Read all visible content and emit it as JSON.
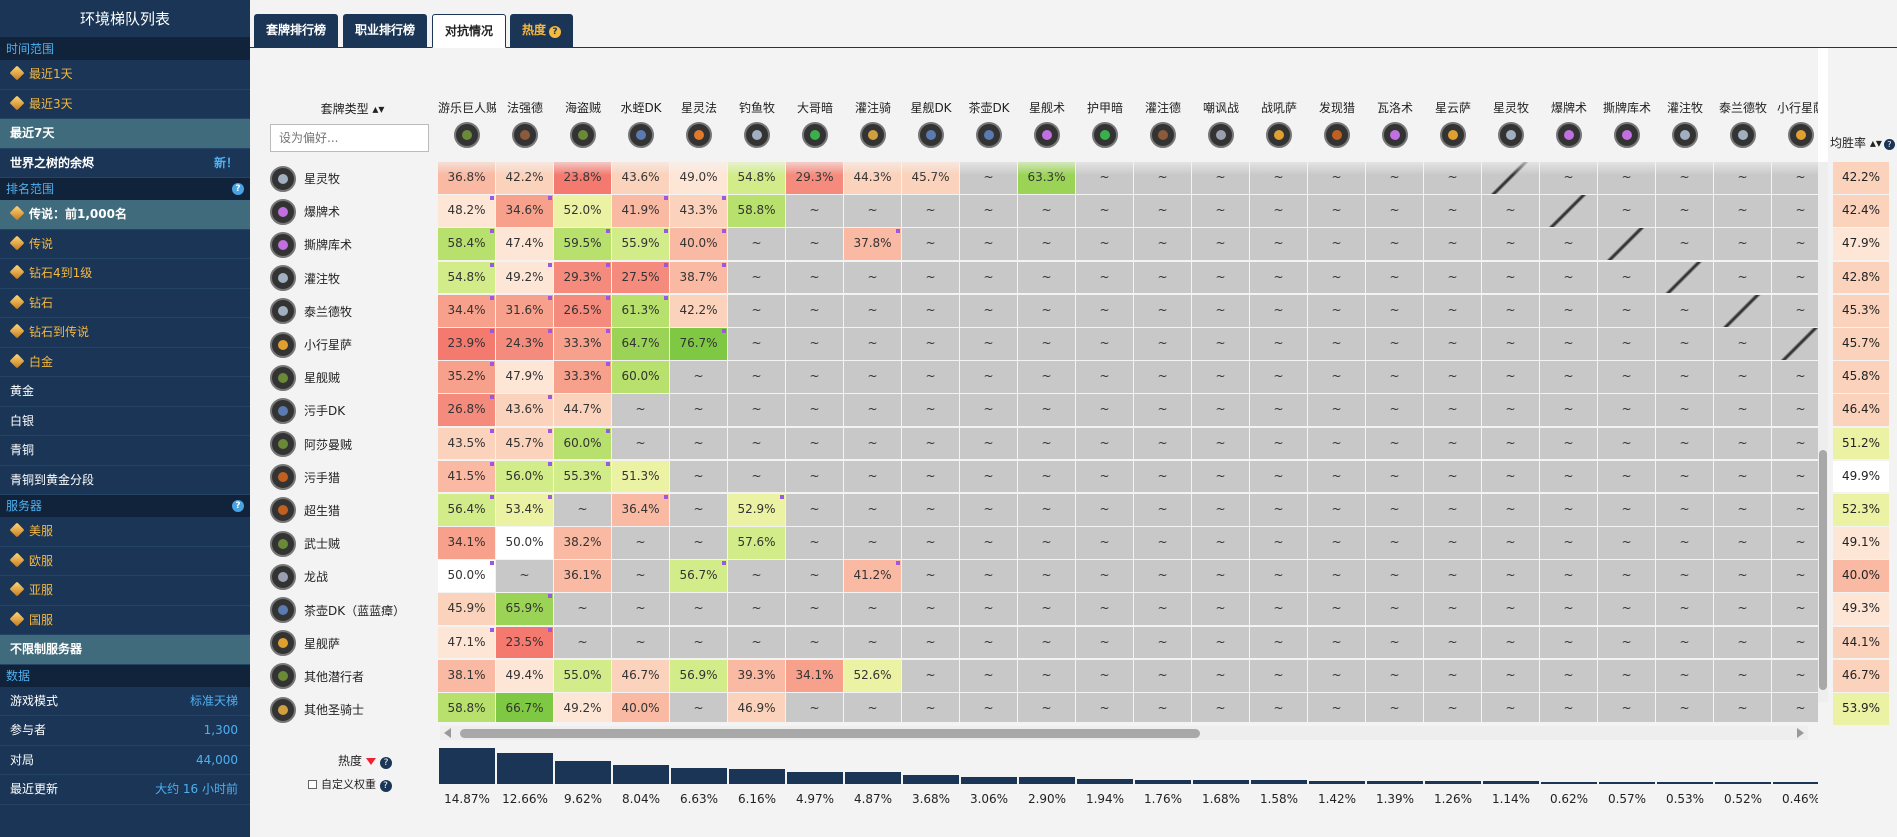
{
  "sidebar": {
    "title": "环境梯队列表",
    "sections": [
      {
        "title": "时间范围",
        "help": false,
        "items": [
          {
            "label": "最近1天",
            "gold": true,
            "icon": true
          },
          {
            "label": "最近3天",
            "gold": true,
            "icon": true
          },
          {
            "label": "最近7天",
            "selected": true
          },
          {
            "label": "世界之树的余烬",
            "bold": true,
            "value": "新！"
          }
        ]
      },
      {
        "title": "排名范围",
        "help": true,
        "items": [
          {
            "label": "传说：前1,000名",
            "selected": true,
            "icon": true
          },
          {
            "label": "传说",
            "gold": true,
            "icon": true
          },
          {
            "label": "钻石4到1级",
            "gold": true,
            "icon": true
          },
          {
            "label": "钻石",
            "gold": true,
            "icon": true
          },
          {
            "label": "钻石到传说",
            "gold": true,
            "icon": true
          },
          {
            "label": "白金",
            "gold": true,
            "icon": true
          },
          {
            "label": "黄金"
          },
          {
            "label": "白银"
          },
          {
            "label": "青铜"
          },
          {
            "label": "青铜到黄金分段"
          }
        ]
      },
      {
        "title": "服务器",
        "help": true,
        "items": [
          {
            "label": "美服",
            "gold": true,
            "icon": true
          },
          {
            "label": "欧服",
            "gold": true,
            "icon": true
          },
          {
            "label": "亚服",
            "gold": true,
            "icon": true
          },
          {
            "label": "国服",
            "gold": true,
            "icon": true
          },
          {
            "label": "不限制服务器",
            "selected": true
          }
        ]
      },
      {
        "title": "数据",
        "help": false,
        "items": [
          {
            "label": "游戏模式",
            "value": "标准天梯"
          },
          {
            "label": "参与者",
            "value": "1,300"
          },
          {
            "label": "对局",
            "value": "44,000"
          },
          {
            "label": "最近更新",
            "value": "大约 16 小时前"
          }
        ]
      }
    ]
  },
  "tabs": [
    {
      "label": "套牌排行榜",
      "active": false
    },
    {
      "label": "职业排行榜",
      "active": false
    },
    {
      "label": "对抗情况",
      "active": true
    },
    {
      "label": "热度",
      "active": false,
      "hot": true,
      "help": "?"
    }
  ],
  "table": {
    "type_header": "套牌类型 ▴▾",
    "filter_placeholder": "设为偏好...",
    "winrate_header": "均胜率 ▴▾",
    "popularity_header": "热度",
    "custom_weight_label": "自定义权重",
    "columns": [
      {
        "name": "游乐巨人贼",
        "color": "#6a8a3a"
      },
      {
        "name": "法强德",
        "color": "#8a5a3a"
      },
      {
        "name": "海盗贼",
        "color": "#6a8a3a"
      },
      {
        "name": "水蛭DK",
        "color": "#5a7ab0"
      },
      {
        "name": "星灵法",
        "color": "#e07a2a"
      },
      {
        "name": "钓鱼牧",
        "color": "#a0b0c0"
      },
      {
        "name": "大哥暗",
        "color": "#3ab04a"
      },
      {
        "name": "灌注骑",
        "color": "#d0a040"
      },
      {
        "name": "星舰DK",
        "color": "#5a7ab0"
      },
      {
        "name": "茶壶DK",
        "color": "#5a7ab0"
      },
      {
        "name": "星舰术",
        "color": "#c070e0"
      },
      {
        "name": "护甲暗",
        "color": "#3ab04a"
      },
      {
        "name": "灌注德",
        "color": "#8a5a3a"
      },
      {
        "name": "嘲讽战",
        "color": "#9aa0b0"
      },
      {
        "name": "战吼萨",
        "color": "#e0a030"
      },
      {
        "name": "发现猎",
        "color": "#c06020"
      },
      {
        "name": "瓦洛术",
        "color": "#c070e0"
      },
      {
        "name": "星云萨",
        "color": "#e0a030"
      },
      {
        "name": "星灵牧",
        "color": "#a0b0c0"
      },
      {
        "name": "爆牌术",
        "color": "#c070e0"
      },
      {
        "name": "撕牌库术",
        "color": "#c070e0"
      },
      {
        "name": "灌注牧",
        "color": "#a0b0c0"
      },
      {
        "name": "泰兰德牧",
        "color": "#a0b0c0"
      },
      {
        "name": "小行星萨",
        "color": "#e0a030"
      }
    ],
    "rows": [
      {
        "name": "星灵牧",
        "color": "#a0b0c0",
        "winrate": "42.2%",
        "cells": [
          "36.8%",
          "42.2%",
          "23.8%",
          "43.6%",
          "49.0%",
          "54.8%",
          "29.3%",
          "44.3%",
          "45.7%",
          "~",
          "63.3%",
          "~",
          "~",
          "~",
          "~",
          "~",
          "~",
          "~",
          "/",
          "~",
          "~",
          "~",
          "~",
          "~"
        ]
      },
      {
        "name": "爆牌术",
        "color": "#c070e0",
        "winrate": "42.4%",
        "cells": [
          "48.2%",
          "34.6%",
          "52.0%",
          "41.9%",
          "43.3%",
          "58.8%",
          "~",
          "~",
          "~",
          "~",
          "~",
          "~",
          "~",
          "~",
          "~",
          "~",
          "~",
          "~",
          "~",
          "/",
          "~",
          "~",
          "~",
          "~"
        ]
      },
      {
        "name": "撕牌库术",
        "color": "#c070e0",
        "winrate": "47.9%",
        "cells": [
          "58.4%",
          "47.4%",
          "59.5%",
          "55.9%",
          "40.0%",
          "~",
          "~",
          "37.8%",
          "~",
          "~",
          "~",
          "~",
          "~",
          "~",
          "~",
          "~",
          "~",
          "~",
          "~",
          "~",
          "/",
          "~",
          "~",
          "~"
        ]
      },
      {
        "name": "灌注牧",
        "color": "#a0b0c0",
        "winrate": "42.8%",
        "cells": [
          "54.8%",
          "49.2%",
          "29.3%",
          "27.5%",
          "38.7%",
          "~",
          "~",
          "~",
          "~",
          "~",
          "~",
          "~",
          "~",
          "~",
          "~",
          "~",
          "~",
          "~",
          "~",
          "~",
          "~",
          "/",
          "~",
          "~"
        ]
      },
      {
        "name": "泰兰德牧",
        "color": "#a0b0c0",
        "winrate": "45.3%",
        "cells": [
          "34.4%",
          "31.6%",
          "26.5%",
          "61.3%",
          "42.2%",
          "~",
          "~",
          "~",
          "~",
          "~",
          "~",
          "~",
          "~",
          "~",
          "~",
          "~",
          "~",
          "~",
          "~",
          "~",
          "~",
          "~",
          "/",
          "~"
        ]
      },
      {
        "name": "小行星萨",
        "color": "#e0a030",
        "winrate": "45.7%",
        "cells": [
          "23.9%",
          "24.3%",
          "33.3%",
          "64.7%",
          "76.7%",
          "~",
          "~",
          "~",
          "~",
          "~",
          "~",
          "~",
          "~",
          "~",
          "~",
          "~",
          "~",
          "~",
          "~",
          "~",
          "~",
          "~",
          "~",
          "/"
        ]
      },
      {
        "name": "星舰贼",
        "color": "#6a8a3a",
        "winrate": "45.8%",
        "cells": [
          "35.2%",
          "47.9%",
          "33.3%",
          "60.0%",
          "~",
          "~",
          "~",
          "~",
          "~",
          "~",
          "~",
          "~",
          "~",
          "~",
          "~",
          "~",
          "~",
          "~",
          "~",
          "~",
          "~",
          "~",
          "~",
          "~"
        ]
      },
      {
        "name": "污手DK",
        "color": "#5a7ab0",
        "winrate": "46.4%",
        "cells": [
          "26.8%",
          "43.6%",
          "44.7%",
          "~",
          "~",
          "~",
          "~",
          "~",
          "~",
          "~",
          "~",
          "~",
          "~",
          "~",
          "~",
          "~",
          "~",
          "~",
          "~",
          "~",
          "~",
          "~",
          "~",
          "~"
        ]
      },
      {
        "name": "阿莎曼贼",
        "color": "#6a8a3a",
        "winrate": "51.2%",
        "cells": [
          "43.5%",
          "45.7%",
          "60.0%",
          "~",
          "~",
          "~",
          "~",
          "~",
          "~",
          "~",
          "~",
          "~",
          "~",
          "~",
          "~",
          "~",
          "~",
          "~",
          "~",
          "~",
          "~",
          "~",
          "~",
          "~"
        ]
      },
      {
        "name": "污手猎",
        "color": "#c06020",
        "winrate": "49.9%",
        "cells": [
          "41.5%",
          "56.0%",
          "55.3%",
          "51.3%",
          "~",
          "~",
          "~",
          "~",
          "~",
          "~",
          "~",
          "~",
          "~",
          "~",
          "~",
          "~",
          "~",
          "~",
          "~",
          "~",
          "~",
          "~",
          "~",
          "~"
        ]
      },
      {
        "name": "超生猎",
        "color": "#c06020",
        "winrate": "52.3%",
        "cells": [
          "56.4%",
          "53.4%",
          "~",
          "36.4%",
          "~",
          "52.9%",
          "~",
          "~",
          "~",
          "~",
          "~",
          "~",
          "~",
          "~",
          "~",
          "~",
          "~",
          "~",
          "~",
          "~",
          "~",
          "~",
          "~",
          "~"
        ]
      },
      {
        "name": "武士贼",
        "color": "#6a8a3a",
        "winrate": "49.1%",
        "cells": [
          "34.1%",
          "50.0%",
          "38.2%",
          "~",
          "~",
          "57.6%",
          "~",
          "~",
          "~",
          "~",
          "~",
          "~",
          "~",
          "~",
          "~",
          "~",
          "~",
          "~",
          "~",
          "~",
          "~",
          "~",
          "~",
          "~"
        ]
      },
      {
        "name": "龙战",
        "color": "#9aa0b0",
        "winrate": "40.0%",
        "cells": [
          "50.0%",
          "~",
          "36.1%",
          "~",
          "56.7%",
          "~",
          "~",
          "41.2%",
          "~",
          "~",
          "~",
          "~",
          "~",
          "~",
          "~",
          "~",
          "~",
          "~",
          "~",
          "~",
          "~",
          "~",
          "~",
          "~"
        ]
      },
      {
        "name": "茶壶DK（蓝蓝瘴）",
        "color": "#5a7ab0",
        "winrate": "49.3%",
        "cells": [
          "45.9%",
          "65.9%",
          "~",
          "~",
          "~",
          "~",
          "~",
          "~",
          "~",
          "~",
          "~",
          "~",
          "~",
          "~",
          "~",
          "~",
          "~",
          "~",
          "~",
          "~",
          "~",
          "~",
          "~",
          "~"
        ]
      },
      {
        "name": "星舰萨",
        "color": "#e0a030",
        "winrate": "44.1%",
        "cells": [
          "47.1%",
          "23.5%",
          "~",
          "~",
          "~",
          "~",
          "~",
          "~",
          "~",
          "~",
          "~",
          "~",
          "~",
          "~",
          "~",
          "~",
          "~",
          "~",
          "~",
          "~",
          "~",
          "~",
          "~",
          "~"
        ]
      },
      {
        "name": "其他潜行者",
        "color": "#6a8a3a",
        "winrate": "46.7%",
        "cells": [
          "38.1%",
          "49.4%",
          "55.0%",
          "46.7%",
          "56.9%",
          "39.3%",
          "34.1%",
          "52.6%",
          "~",
          "~",
          "~",
          "~",
          "~",
          "~",
          "~",
          "~",
          "~",
          "~",
          "~",
          "~",
          "~",
          "~",
          "~",
          "~"
        ]
      },
      {
        "name": "其他圣骑士",
        "color": "#d0a040",
        "winrate": "53.9%",
        "cells": [
          "58.8%",
          "66.7%",
          "49.2%",
          "40.0%",
          "~",
          "46.9%",
          "~",
          "~",
          "~",
          "~",
          "~",
          "~",
          "~",
          "~",
          "~",
          "~",
          "~",
          "~",
          "~",
          "~",
          "~",
          "~",
          "~",
          "~"
        ]
      }
    ],
    "popularity": [
      "14.87%",
      "12.66%",
      "9.62%",
      "8.04%",
      "6.63%",
      "6.16%",
      "4.97%",
      "4.87%",
      "3.68%",
      "3.06%",
      "2.90%",
      "1.94%",
      "1.76%",
      "1.68%",
      "1.58%",
      "1.42%",
      "1.39%",
      "1.26%",
      "1.14%",
      "0.62%",
      "0.57%",
      "0.53%",
      "0.52%",
      "0.46%"
    ]
  }
}
